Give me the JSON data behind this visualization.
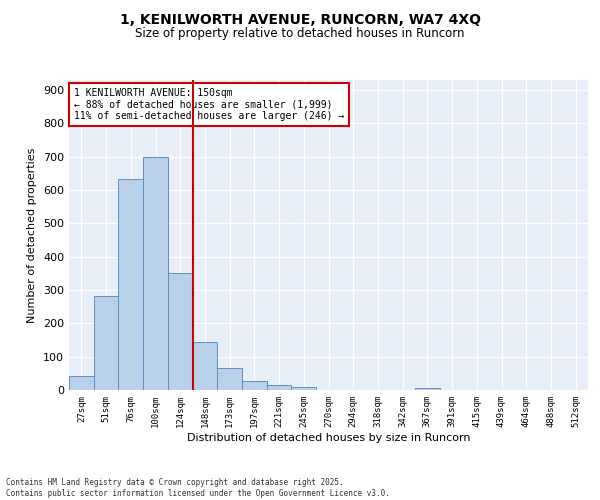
{
  "title": "1, KENILWORTH AVENUE, RUNCORN, WA7 4XQ",
  "subtitle": "Size of property relative to detached houses in Runcorn",
  "xlabel": "Distribution of detached houses by size in Runcorn",
  "ylabel": "Number of detached properties",
  "bar_labels": [
    "27sqm",
    "51sqm",
    "76sqm",
    "100sqm",
    "124sqm",
    "148sqm",
    "173sqm",
    "197sqm",
    "221sqm",
    "245sqm",
    "270sqm",
    "294sqm",
    "318sqm",
    "342sqm",
    "367sqm",
    "391sqm",
    "415sqm",
    "439sqm",
    "464sqm",
    "488sqm",
    "512sqm"
  ],
  "bar_values": [
    42,
    283,
    632,
    700,
    352,
    143,
    65,
    28,
    15,
    10,
    0,
    0,
    0,
    0,
    5,
    0,
    0,
    0,
    0,
    0,
    0
  ],
  "bar_color": "#b8d0e8",
  "bar_edge_color": "#6090c0",
  "vline_color": "#cc0000",
  "annotation_title": "1 KENILWORTH AVENUE: 150sqm",
  "annotation_line1": "← 88% of detached houses are smaller (1,999)",
  "annotation_line2": "11% of semi-detached houses are larger (246) →",
  "annotation_box_color": "#cc0000",
  "ylim": [
    0,
    930
  ],
  "yticks": [
    0,
    100,
    200,
    300,
    400,
    500,
    600,
    700,
    800,
    900
  ],
  "background_color": "#e8eef8",
  "footer_line1": "Contains HM Land Registry data © Crown copyright and database right 2025.",
  "footer_line2": "Contains public sector information licensed under the Open Government Licence v3.0."
}
